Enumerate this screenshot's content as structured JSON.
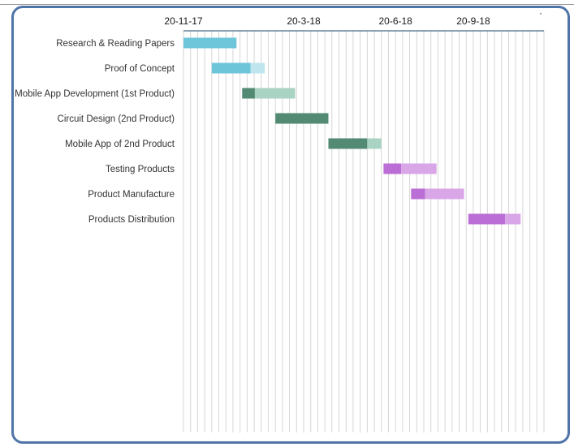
{
  "chart_data": {
    "type": "bar",
    "subtype": "gantt",
    "title": "",
    "xlabel": "",
    "ylabel": "",
    "x_tick_labels": [
      "20-11-17",
      "20-3-18",
      "20-6-18",
      "20-9-18"
    ],
    "x_ticks_week_index": [
      0,
      17,
      30,
      41
    ],
    "x_range_weeks": [
      0,
      51
    ],
    "grid": "vertical-weekly",
    "legend": "none",
    "colors": {
      "phase1_done": "#6cc5d9",
      "phase1_remaining": "#bfe6ef",
      "phase2_done": "#528a73",
      "phase2_remaining": "#a9d3c2",
      "phase3_done": "#bb6ed6",
      "phase3_remaining": "#d9a6e8",
      "axis": "#4a6a8a",
      "grid": "#d6d6d6"
    },
    "tasks": [
      {
        "name": "Research & Reading Papers",
        "start_week": 0,
        "done_weeks": 7.5,
        "remaining_weeks": 0,
        "phase": "phase1"
      },
      {
        "name": "Proof of Concept",
        "start_week": 4,
        "done_weeks": 5.5,
        "remaining_weeks": 2,
        "phase": "phase1"
      },
      {
        "name": "Mobile App Development (1st Product)",
        "start_week": 8.3,
        "done_weeks": 1.8,
        "remaining_weeks": 5.7,
        "phase": "phase2"
      },
      {
        "name": "Circuit Design (2nd Product)",
        "start_week": 13,
        "done_weeks": 7.5,
        "remaining_weeks": 0,
        "phase": "phase2"
      },
      {
        "name": "Mobile App of 2nd Product",
        "start_week": 20.5,
        "done_weeks": 5.5,
        "remaining_weeks": 2,
        "phase": "phase2"
      },
      {
        "name": "Testing Products",
        "start_week": 28.3,
        "done_weeks": 2.5,
        "remaining_weeks": 5,
        "phase": "phase3"
      },
      {
        "name": "Product Manufacture",
        "start_week": 32.2,
        "done_weeks": 2,
        "remaining_weeks": 5.5,
        "phase": "phase3"
      },
      {
        "name": "Products Distribution",
        "start_week": 40.3,
        "done_weeks": 5.2,
        "remaining_weeks": 2.2,
        "phase": "phase3"
      }
    ]
  }
}
